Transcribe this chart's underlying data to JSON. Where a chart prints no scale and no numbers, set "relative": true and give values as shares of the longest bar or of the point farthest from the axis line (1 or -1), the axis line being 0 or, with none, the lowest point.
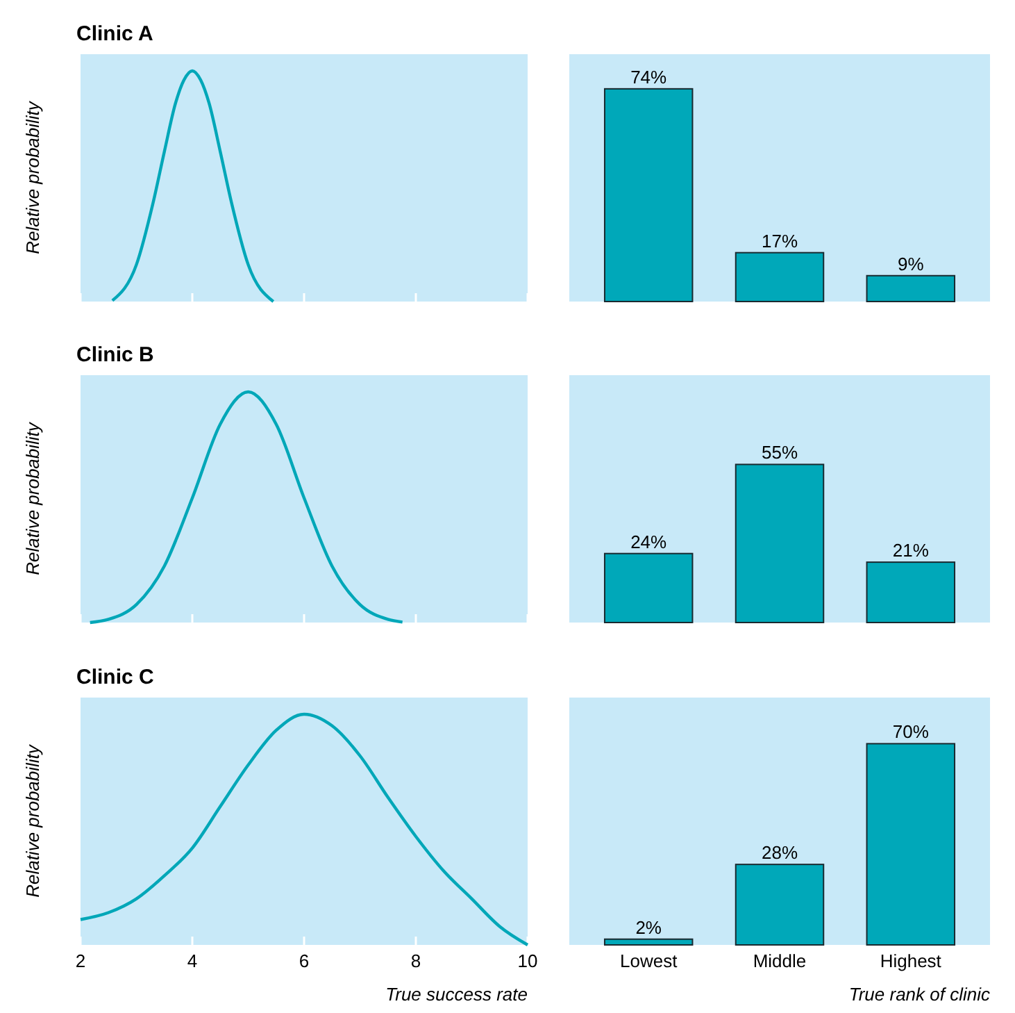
{
  "chart_data": [
    {
      "type": "line",
      "title": "Clinic A",
      "ylabel": "Relative probability",
      "relative": true,
      "x": [
        2.57,
        3.0,
        3.3,
        3.5,
        3.7,
        3.85,
        4.0,
        4.15,
        4.3,
        4.5,
        4.7,
        5.0,
        5.45
      ],
      "series": [
        {
          "color": "#00a7b8",
          "values": [
            0.004,
            0.16,
            0.43,
            0.65,
            0.86,
            0.96,
            1,
            0.96,
            0.86,
            0.65,
            0.43,
            0.16,
            0
          ]
        }
      ],
      "xlim": [
        2,
        10
      ],
      "xticks": [
        2,
        4,
        6,
        8,
        10
      ],
      "tick_labels": false
    },
    {
      "type": "bar",
      "categories": [
        null,
        null,
        null
      ],
      "values": [
        74,
        17,
        9
      ],
      "value_labels": [
        "74%",
        "17%",
        "9%"
      ],
      "color": "#00a8b9",
      "tick_labels": false
    },
    {
      "type": "line",
      "title": "Clinic B",
      "ylabel": "Relative probability",
      "relative": true,
      "x": [
        2.17,
        2.5,
        3,
        3.5,
        4,
        4.5,
        5,
        5.5,
        6,
        6.5,
        7,
        7.5,
        7.76
      ],
      "series": [
        {
          "color": "#00a7b8",
          "values": [
            0,
            0.014,
            0.078,
            0.245,
            0.54,
            0.86,
            1,
            0.86,
            0.54,
            0.245,
            0.078,
            0.014,
            0.002
          ]
        }
      ],
      "xlim": [
        2,
        10
      ],
      "xticks": [
        2,
        4,
        6,
        8,
        10
      ],
      "tick_labels": false
    },
    {
      "type": "bar",
      "categories": [
        null,
        null,
        null
      ],
      "values": [
        24,
        55,
        21
      ],
      "value_labels": [
        "24%",
        "55%",
        "21%"
      ],
      "color": "#00a8b9",
      "tick_labels": false
    },
    {
      "type": "line",
      "title": "Clinic C",
      "ylabel": "Relative probability",
      "xlabel": "True success rate",
      "relative": true,
      "x": [
        2,
        2.5,
        3,
        3.5,
        4,
        4.5,
        5,
        5.5,
        6,
        6.5,
        7,
        7.5,
        8,
        8.5,
        9,
        9.5,
        10
      ],
      "series": [
        {
          "color": "#00a7b8",
          "values": [
            0.11,
            0.14,
            0.2,
            0.3,
            0.42,
            0.6,
            0.78,
            0.93,
            1,
            0.95,
            0.82,
            0.64,
            0.47,
            0.32,
            0.2,
            0.08,
            0
          ]
        }
      ],
      "xlim": [
        2,
        10
      ],
      "xticks": [
        2,
        4,
        6,
        8,
        10
      ],
      "tick_labels": "x"
    },
    {
      "type": "bar",
      "xlabel": "True rank of clinic",
      "categories": [
        "Lowest",
        "Middle",
        "Highest"
      ],
      "values": [
        2,
        28,
        70
      ],
      "value_labels": [
        "2%",
        "28%",
        "70%"
      ],
      "color": "#00a8b9",
      "tick_labels": "x"
    }
  ]
}
